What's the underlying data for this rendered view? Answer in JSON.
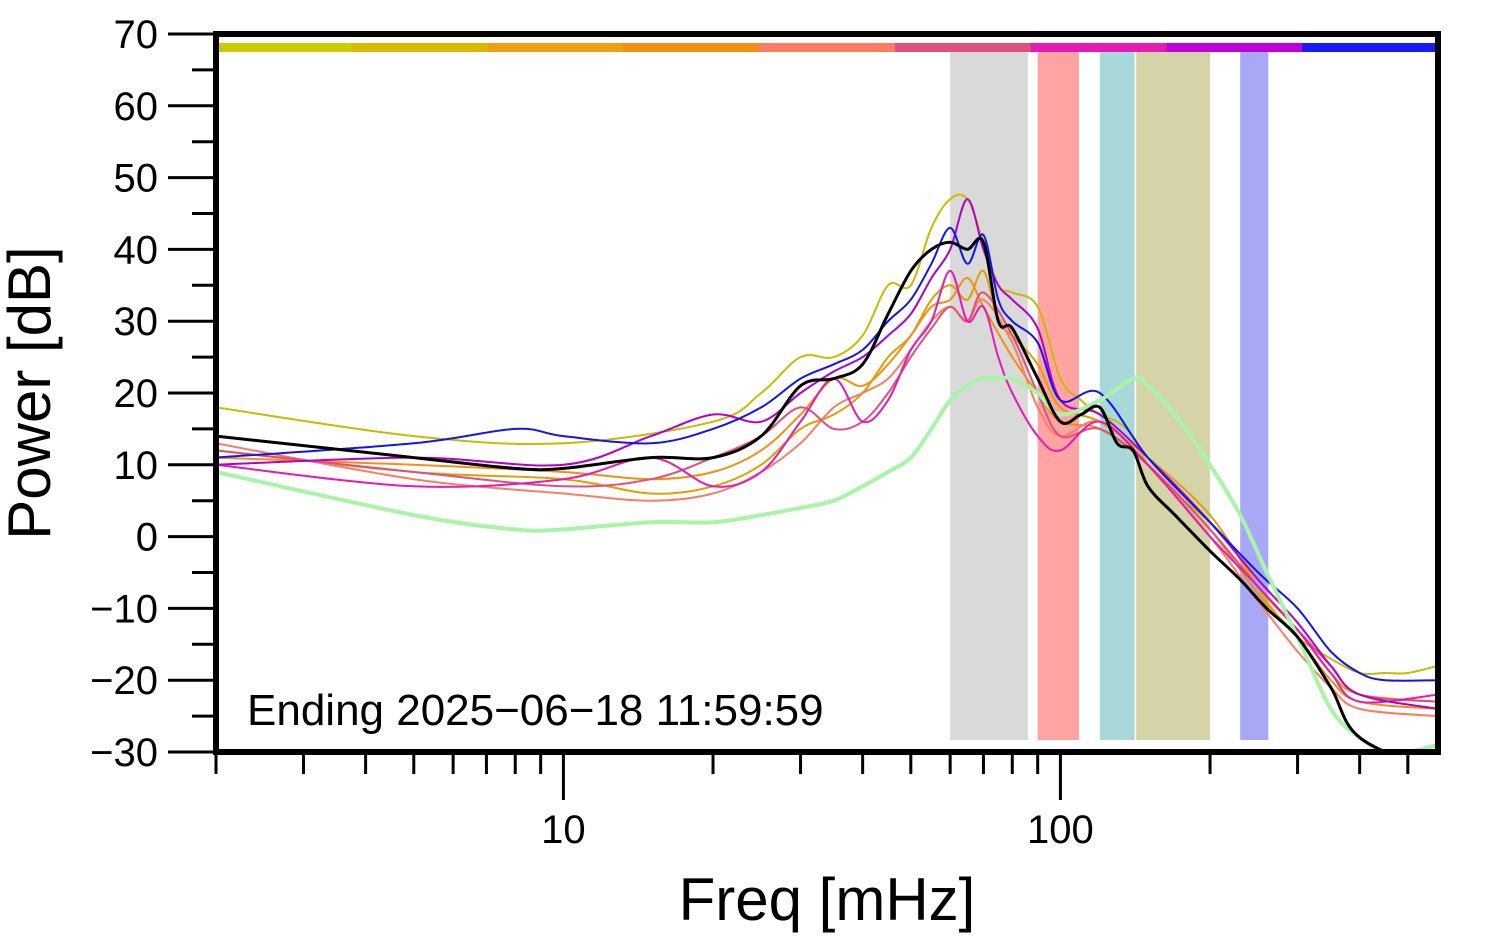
{
  "chart_data": {
    "type": "line",
    "xlabel": "Freq [mHz]",
    "ylabel": "Power [dB]",
    "annotation": "Ending 2025−06−18 11:59:59",
    "xscale": "log",
    "xlim": [
      2.0,
      575
    ],
    "ylim": [
      -30,
      70
    ],
    "yticks": [
      70,
      60,
      50,
      40,
      30,
      20,
      10,
      0,
      -10,
      -20,
      -30
    ],
    "ytick_labels": [
      "70",
      "60",
      "50",
      "40",
      "30",
      "20",
      "10",
      "0",
      "−10",
      "−20",
      "−30"
    ],
    "xticks": [
      10,
      100
    ],
    "xtick_labels": [
      "10",
      "100"
    ],
    "grid": false,
    "top_color_strip": [
      "#cccc00",
      "#d9b800",
      "#eda010",
      "#f39010",
      "#fb7d64",
      "#e0507e",
      "#e61ab4",
      "#c000d8",
      "#1a1aff"
    ],
    "bands": [
      {
        "x0": 60,
        "x1": 86,
        "color": "#d9d9d9"
      },
      {
        "x0": 90,
        "x1": 109,
        "color": "#ffa3a3"
      },
      {
        "x0": 120,
        "x1": 141,
        "color": "#a8d8da"
      },
      {
        "x0": 142,
        "x1": 200,
        "color": "#d4d4a8"
      },
      {
        "x0": 230,
        "x1": 262,
        "color": "#a8a8f6"
      }
    ],
    "series": [
      {
        "color": "#c8bc00",
        "width": 2,
        "x": [
          2,
          5,
          10,
          20,
          25,
          30,
          35,
          40,
          45,
          50,
          55,
          60,
          65,
          70,
          75,
          80,
          90,
          100,
          110,
          120,
          130,
          140,
          150,
          170,
          200,
          230,
          260,
          300,
          350,
          400,
          450,
          500,
          575
        ],
        "y": [
          18,
          14,
          13,
          16,
          20,
          25,
          25,
          28,
          35,
          35,
          43,
          47,
          47,
          41,
          35,
          34,
          32,
          22,
          19,
          17,
          16,
          14,
          10,
          6,
          2,
          -3,
          -9,
          -14,
          -17,
          -19,
          -19,
          -19,
          -18
        ]
      },
      {
        "color": "#e0a000",
        "width": 2,
        "x": [
          2,
          5,
          10,
          15,
          20,
          25,
          30,
          35,
          40,
          45,
          50,
          55,
          60,
          65,
          70,
          75,
          80,
          90,
          100,
          120,
          150,
          200,
          250,
          300,
          350,
          400,
          575
        ],
        "y": [
          12,
          9,
          8,
          6,
          7,
          10,
          15,
          17,
          20,
          25,
          28,
          33,
          35,
          33,
          37,
          30,
          28,
          24,
          18,
          16,
          11,
          3,
          -7,
          -13,
          -19,
          -22,
          -23
        ]
      },
      {
        "color": "#f39010",
        "width": 2,
        "x": [
          2,
          5,
          10,
          15,
          20,
          25,
          30,
          35,
          40,
          45,
          50,
          55,
          60,
          65,
          70,
          80,
          90,
          100,
          120,
          150,
          200,
          250,
          300,
          350,
          400,
          575
        ],
        "y": [
          11,
          10,
          9,
          8,
          9,
          12,
          17,
          22,
          21,
          24,
          28,
          32,
          33,
          36,
          32,
          25,
          20,
          16,
          15,
          10,
          1,
          -8,
          -14,
          -20,
          -23,
          -24
        ]
      },
      {
        "color": "#fb7d64",
        "width": 2,
        "x": [
          2,
          5,
          10,
          15,
          20,
          25,
          30,
          35,
          40,
          45,
          50,
          55,
          60,
          65,
          70,
          80,
          90,
          100,
          120,
          150,
          200,
          250,
          300,
          350,
          400,
          575
        ],
        "y": [
          13,
          8,
          6,
          5,
          6,
          9,
          13,
          18,
          20,
          22,
          26,
          30,
          32,
          30,
          33,
          27,
          18,
          14,
          16,
          10,
          0,
          -9,
          -16,
          -21,
          -24,
          -25
        ]
      },
      {
        "color": "#e0507e",
        "width": 2,
        "x": [
          2,
          5,
          10,
          15,
          20,
          25,
          30,
          35,
          40,
          45,
          50,
          55,
          60,
          65,
          70,
          80,
          90,
          100,
          120,
          150,
          200,
          250,
          300,
          350,
          400,
          575
        ],
        "y": [
          12,
          9,
          7,
          8,
          11,
          14,
          18,
          15,
          16,
          20,
          25,
          29,
          32,
          30,
          34,
          28,
          20,
          14,
          15,
          10,
          1,
          -7,
          -13,
          -18,
          -22,
          -23
        ]
      },
      {
        "color": "#e61ab4",
        "width": 2,
        "x": [
          2,
          5,
          10,
          15,
          20,
          25,
          30,
          35,
          40,
          45,
          50,
          55,
          60,
          65,
          70,
          75,
          80,
          90,
          100,
          120,
          150,
          200,
          250,
          300,
          350,
          400,
          575
        ],
        "y": [
          10,
          7,
          8,
          11,
          7,
          9,
          16,
          22,
          16,
          19,
          26,
          30,
          37,
          30,
          32,
          25,
          20,
          14,
          12,
          16,
          10,
          0,
          -7,
          -13,
          -19,
          -23,
          -22
        ]
      },
      {
        "color": "#b400cc",
        "width": 2,
        "x": [
          2,
          5,
          10,
          15,
          20,
          25,
          30,
          35,
          40,
          45,
          50,
          55,
          60,
          65,
          70,
          75,
          80,
          90,
          100,
          120,
          150,
          200,
          250,
          300,
          350,
          400,
          575
        ],
        "y": [
          10,
          11,
          10,
          14,
          17,
          16,
          20,
          23,
          25,
          28,
          31,
          36,
          40,
          47,
          40,
          35,
          33,
          29,
          19,
          17,
          11,
          2,
          -6,
          -12,
          -18,
          -22,
          -24
        ]
      },
      {
        "color": "#1414ee",
        "width": 2,
        "x": [
          2,
          5,
          8,
          10,
          15,
          20,
          25,
          30,
          35,
          40,
          45,
          50,
          55,
          60,
          65,
          70,
          75,
          80,
          90,
          100,
          120,
          150,
          200,
          250,
          300,
          350,
          400,
          450,
          575
        ],
        "y": [
          11,
          13,
          15,
          14,
          13,
          15,
          18,
          22,
          24,
          26,
          30,
          33,
          38,
          43,
          38,
          42,
          33,
          30,
          27,
          19,
          20,
          11,
          2,
          -5,
          -10,
          -16,
          -19,
          -20,
          -20
        ]
      },
      {
        "color": "#a8f5a8",
        "width": 4,
        "x": [
          2,
          5,
          8,
          10,
          15,
          20,
          25,
          30,
          35,
          40,
          45,
          50,
          55,
          60,
          65,
          70,
          75,
          80,
          90,
          100,
          120,
          140,
          150,
          170,
          200,
          230,
          260,
          300,
          350,
          400,
          450,
          500,
          575
        ],
        "y": [
          9,
          3,
          1,
          1,
          2,
          2,
          3,
          4,
          5,
          7,
          9,
          11,
          15,
          19,
          21,
          22,
          22,
          22,
          20,
          17,
          19,
          22,
          21,
          17,
          10,
          3,
          -5,
          -14,
          -24,
          -28,
          -30,
          -30,
          -29
        ]
      },
      {
        "color": "#000000",
        "width": 3,
        "x": [
          2,
          5,
          8,
          10,
          15,
          20,
          25,
          30,
          35,
          40,
          45,
          50,
          55,
          60,
          65,
          70,
          75,
          80,
          90,
          100,
          110,
          120,
          130,
          140,
          150,
          170,
          200,
          230,
          260,
          300,
          350,
          400,
          575
        ],
        "y": [
          14,
          11,
          9.5,
          9.5,
          11,
          11,
          14,
          21,
          22,
          24,
          31,
          37,
          40,
          41,
          40,
          41,
          30,
          29,
          22,
          16,
          17,
          18,
          13,
          12,
          7,
          3,
          -2,
          -6,
          -10,
          -14,
          -21,
          -28,
          -33
        ]
      }
    ]
  }
}
